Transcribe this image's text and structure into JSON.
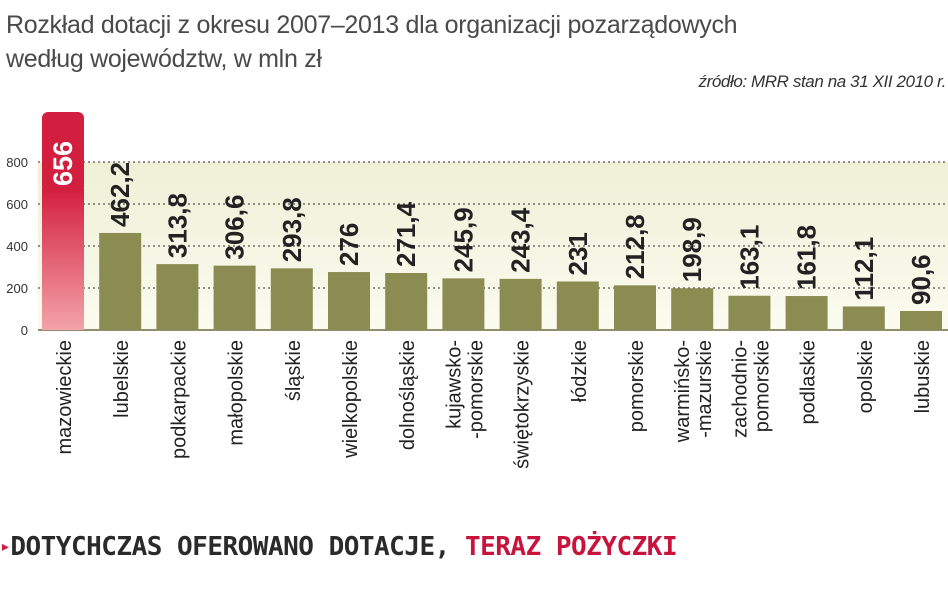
{
  "title_line1": "Rozkład dotacji z okresu 2007–2013 dla organizacji pozarządowych",
  "title_line2": "według województw, w mln zł",
  "source": "źródło: MRR stan na 31 XII 2010 r.",
  "headline": {
    "marker": "▸",
    "part1": "DOTYCHCZAS OFEROWANO DOTACJE, ",
    "part2": "TERAZ POŻYCZKI"
  },
  "colors": {
    "bar": "#8a8c52",
    "highlight_bar": "#d31f3f",
    "highlight_label_bg": "#d31f3f",
    "band_top": "#eef0d6",
    "band_bottom": "#fbfbf0",
    "accent": "#c8133c"
  },
  "chart_data": {
    "type": "bar",
    "categories": [
      "mazowieckie",
      "lubelskie",
      "podkarpackie",
      "małopolskie",
      "śląskie",
      "wielkopolskie",
      "dolnośląskie",
      "kujawsko-\n-pomorskie",
      "świętokrzyskie",
      "łódzkie",
      "pomorskie",
      "warmińsko-\n-mazurskie",
      "zachodnio-\npomorskie",
      "podlaskie",
      "opolskie",
      "lubuskie"
    ],
    "values": [
      656,
      462.2,
      313.8,
      306.6,
      293.8,
      276,
      271.4,
      245.9,
      243.4,
      231,
      212.8,
      198.9,
      163.1,
      161.8,
      112.1,
      90.6
    ],
    "value_labels": [
      "656",
      "462,2",
      "313,8",
      "306,6",
      "293,8",
      "276",
      "271,4",
      "245,9",
      "243,4",
      "231",
      "212,8",
      "198,9",
      "163,1",
      "161,8",
      "112,1",
      "90,6"
    ],
    "y_ticks": [
      0,
      200,
      400,
      600,
      800
    ],
    "y_tick_labels": [
      "0",
      "200",
      "400",
      "600",
      "800"
    ],
    "ylim": [
      0,
      800
    ],
    "grid": true,
    "highlight_index": 0
  }
}
